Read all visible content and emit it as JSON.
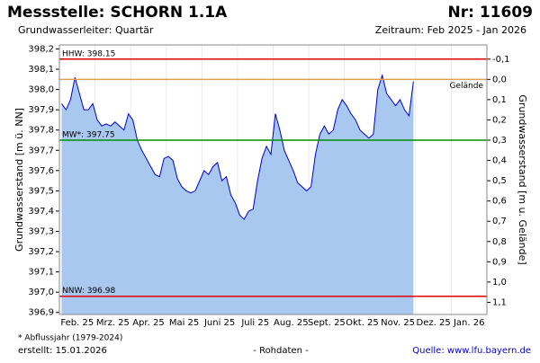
{
  "chart_data": {
    "type": "area",
    "title": "Messstelle: SCHORN 1.1A",
    "number": "Nr: 11609",
    "subtitle": "Grundwasserleiter: Quartär",
    "period": "Zeitraum: Feb 2025 - Jan 2026",
    "ylabel": "Grundwasserstand [m ü. NN]",
    "y2label": "Grundwasserstand [m u. Gelände]",
    "footnote": "* Abflussjahr (1979-2024)",
    "created": "erstellt:  15.01.2026",
    "rawdata": "- Rohdaten -",
    "source": "Quelle: www.lfu.bayern.de",
    "ylim": [
      396.89,
      398.22
    ],
    "yticks": [
      {
        "value": 396.9,
        "label": "396,9"
      },
      {
        "value": 397.0,
        "label": "397,0"
      },
      {
        "value": 397.1,
        "label": "397,1"
      },
      {
        "value": 397.2,
        "label": "397,2"
      },
      {
        "value": 397.3,
        "label": "397,3"
      },
      {
        "value": 397.4,
        "label": "397,4"
      },
      {
        "value": 397.5,
        "label": "397,5"
      },
      {
        "value": 397.6,
        "label": "397,6"
      },
      {
        "value": 397.7,
        "label": "397,7"
      },
      {
        "value": 397.8,
        "label": "397,8"
      },
      {
        "value": 397.9,
        "label": "397,9"
      },
      {
        "value": 398.0,
        "label": "398,0"
      },
      {
        "value": 398.1,
        "label": "398,1"
      },
      {
        "value": 398.2,
        "label": "398,2"
      }
    ],
    "y2lim": [
      1.16,
      -0.17
    ],
    "y2ticks": [
      {
        "value": -0.1,
        "label": "-0,1"
      },
      {
        "value": 0.0,
        "label": "0,0"
      },
      {
        "value": 0.1,
        "label": "0,1"
      },
      {
        "value": 0.2,
        "label": "0,2"
      },
      {
        "value": 0.3,
        "label": "0,3"
      },
      {
        "value": 0.4,
        "label": "0,4"
      },
      {
        "value": 0.5,
        "label": "0,5"
      },
      {
        "value": 0.6,
        "label": "0,6"
      },
      {
        "value": 0.7,
        "label": "0,7"
      },
      {
        "value": 0.8,
        "label": "0,8"
      },
      {
        "value": 0.9,
        "label": "0,9"
      },
      {
        "value": 1.0,
        "label": "1,0"
      },
      {
        "value": 1.1,
        "label": "1,1"
      }
    ],
    "reference_lines": [
      {
        "label": "HHW: 398.15",
        "value": 398.15,
        "color": "#e00000"
      },
      {
        "label": "Gelände",
        "value": 398.05,
        "color": "#e0a050"
      },
      {
        "label": "MW*: 397.75",
        "value": 397.75,
        "color": "#009000"
      },
      {
        "label": "NNW: 396.98",
        "value": 396.98,
        "color": "#e00000"
      }
    ],
    "categories": [
      "Feb. 25",
      null,
      null,
      null,
      null,
      null,
      null,
      null,
      "Mrz. 25",
      null,
      null,
      null,
      null,
      null,
      null,
      null,
      "Apr. 25",
      null,
      null,
      null,
      null,
      null,
      null,
      null,
      "Mai 25",
      null,
      null,
      null,
      null,
      null,
      null,
      null,
      "Juni 25",
      null,
      null,
      null,
      null,
      null,
      null,
      null,
      "Juli 25",
      null,
      null,
      null,
      null,
      null,
      null,
      null,
      "Aug. 25",
      null,
      null,
      null,
      null,
      null,
      null,
      null,
      "Sept. 25",
      null,
      null,
      null,
      null,
      null,
      null,
      null,
      "Okt. 25",
      null,
      null,
      null,
      null,
      null,
      null,
      null,
      "Nov. 25",
      null,
      null,
      null,
      null,
      null,
      null,
      null,
      "Dez. 25",
      null,
      null,
      null,
      null,
      null,
      null,
      null,
      "Jan. 26",
      null,
      null,
      null,
      null,
      null,
      null,
      null
    ],
    "series": [
      {
        "color": "#0000cc",
        "fill": "#a8c8f0",
        "values": [
          397.93,
          397.9,
          397.95,
          398.06,
          397.98,
          397.9,
          397.9,
          397.93,
          397.85,
          397.82,
          397.83,
          397.82,
          397.84,
          397.82,
          397.8,
          397.88,
          397.85,
          397.75,
          397.7,
          397.66,
          397.62,
          397.58,
          397.57,
          397.66,
          397.67,
          397.65,
          397.56,
          397.52,
          397.5,
          397.49,
          397.5,
          397.55,
          397.6,
          397.58,
          397.62,
          397.64,
          397.55,
          397.57,
          397.48,
          397.44,
          397.38,
          397.36,
          397.4,
          397.41,
          397.55,
          397.66,
          397.72,
          397.68,
          397.88,
          397.8,
          397.7,
          397.65,
          397.6,
          397.54,
          397.52,
          397.5,
          397.52,
          397.68,
          397.78,
          397.82,
          397.78,
          397.8,
          397.9,
          397.95,
          397.92,
          397.88,
          397.85,
          397.8,
          397.78,
          397.76,
          397.78,
          398.0,
          398.07,
          397.98,
          397.95,
          397.92,
          397.95,
          397.9,
          397.87,
          398.04,
          null,
          null,
          null,
          null,
          null,
          null,
          null,
          null,
          null,
          null,
          null,
          null,
          null,
          null,
          null,
          null
        ]
      }
    ]
  }
}
